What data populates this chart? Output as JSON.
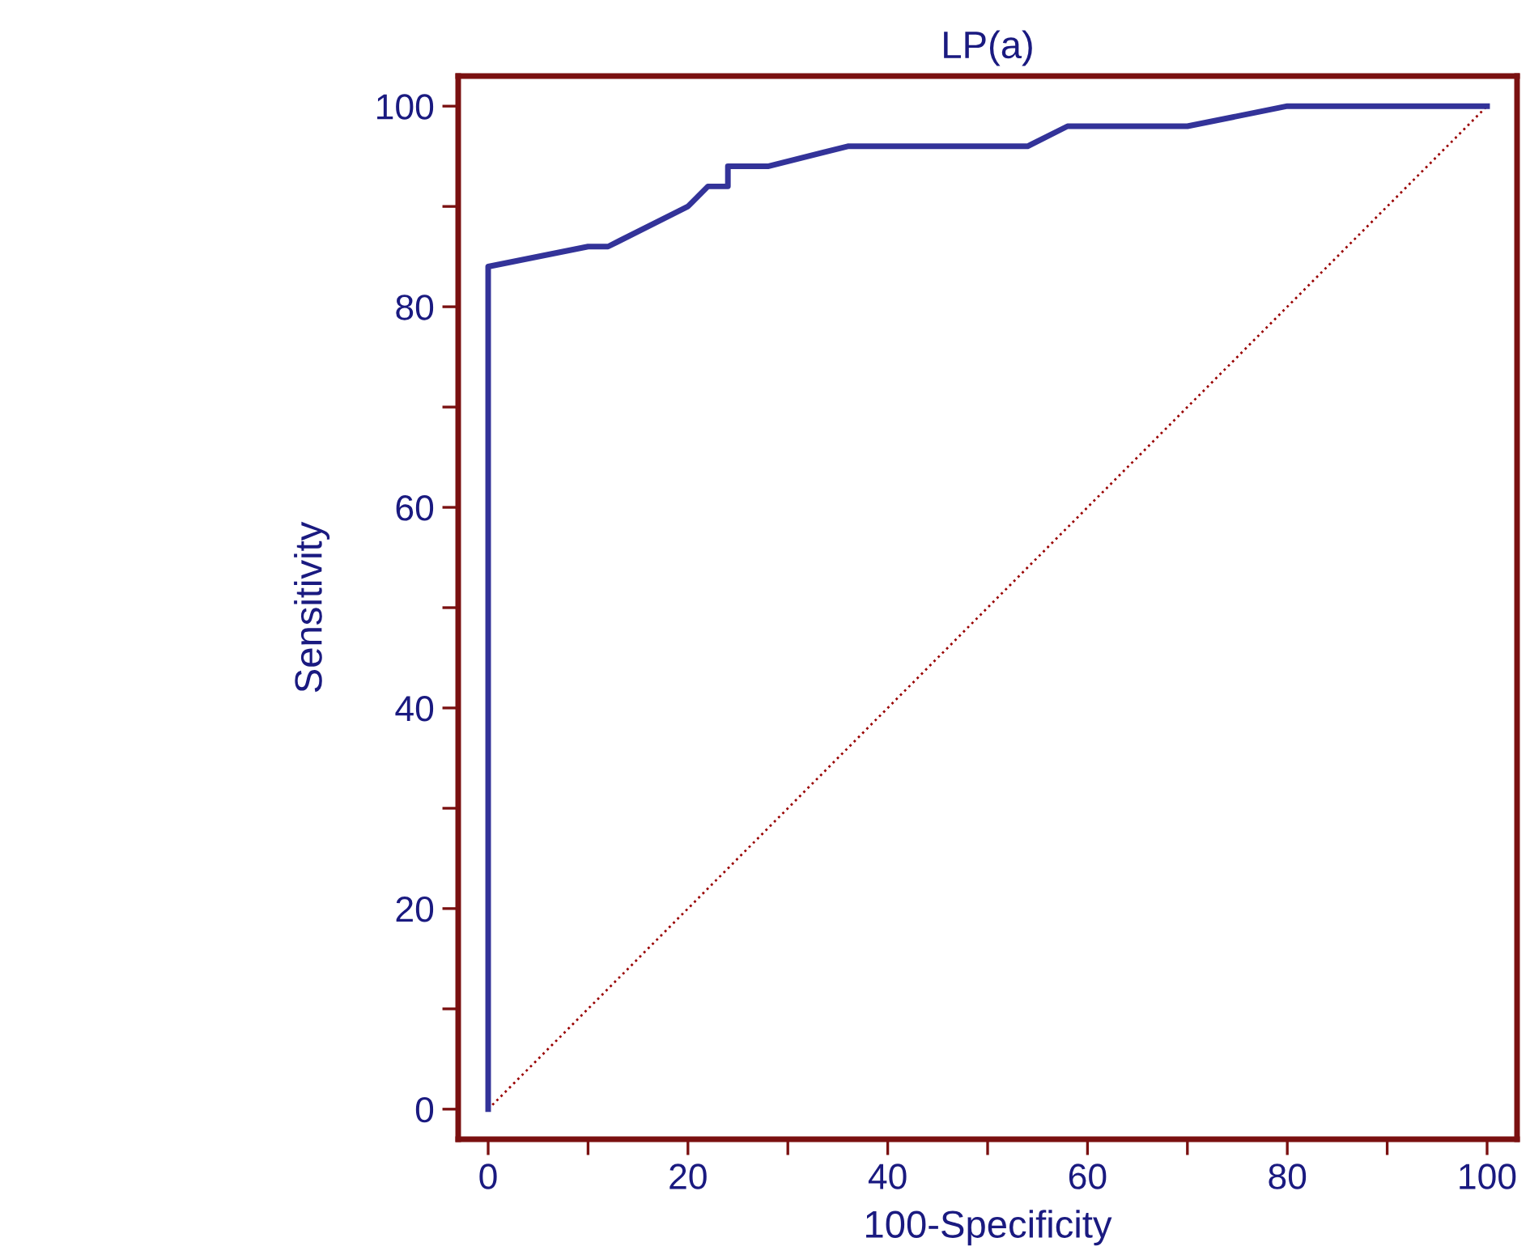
{
  "chart_data": {
    "type": "line",
    "title": "LP(a)",
    "xlabel": "100-Specificity",
    "ylabel": "Sensitivity",
    "series": [
      {
        "color": "#333399",
        "line_style": "solid",
        "x": [
          0,
          0,
          10,
          12,
          20,
          22,
          24,
          24,
          28,
          36,
          54,
          58,
          70,
          80,
          100
        ],
        "values": [
          0,
          84,
          86,
          86,
          90,
          92,
          92,
          94,
          94,
          96,
          96,
          98,
          98,
          100,
          100
        ]
      },
      {
        "color": "#990000",
        "line_style": "dotted",
        "x": [
          0,
          100
        ],
        "values": [
          0,
          100
        ]
      }
    ],
    "xlim": [
      -3,
      103
    ],
    "ylim": [
      -3,
      103
    ],
    "xticks": [
      0,
      {
        "value": 10,
        "label": null
      },
      20,
      {
        "value": 30,
        "label": null
      },
      40,
      {
        "value": 50,
        "label": null
      },
      60,
      {
        "value": 70,
        "label": null
      },
      80,
      {
        "value": 90,
        "label": null
      },
      100
    ],
    "yticks": [
      0,
      {
        "value": 10,
        "label": null
      },
      20,
      {
        "value": 30,
        "label": null
      },
      40,
      {
        "value": 50,
        "label": null
      },
      60,
      {
        "value": 70,
        "label": null
      },
      80,
      {
        "value": 90,
        "label": null
      },
      100
    ],
    "grid": false,
    "marker": "none"
  }
}
